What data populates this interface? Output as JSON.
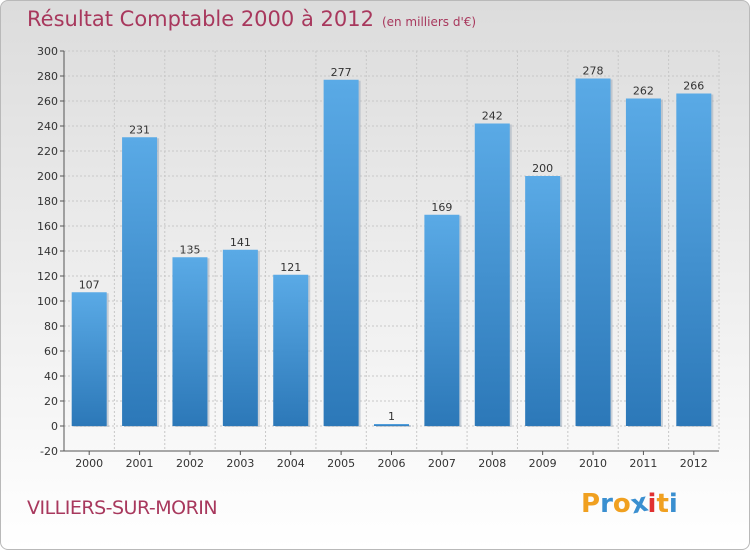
{
  "header": {
    "title": "Résultat Comptable 2000 à 2012",
    "subtitle": "(en milliers d'€)"
  },
  "footer": {
    "commune": "VILLIERS-SUR-MORIN",
    "logo_letters": [
      "P",
      "r",
      "o",
      "x",
      "i",
      "t",
      "i"
    ],
    "logo_colors": [
      "#f0a020",
      "#3a8fd0",
      "#f0a020",
      "#3a8fd0",
      "#e03030",
      "#f0a020",
      "#3a8fd0"
    ]
  },
  "colors": {
    "bar_light": "#5aaae6",
    "bar_dark": "#2c78b8",
    "title": "#a8385d",
    "grid": "#c8c8c8"
  },
  "chart_data": {
    "type": "bar",
    "title": "Résultat Comptable 2000 à 2012",
    "subtitle": "(en milliers d'€)",
    "categories": [
      "2000",
      "2001",
      "2002",
      "2003",
      "2004",
      "2005",
      "2006",
      "2007",
      "2008",
      "2009",
      "2010",
      "2011",
      "2012"
    ],
    "values": [
      107,
      231,
      135,
      141,
      121,
      277,
      1,
      169,
      242,
      200,
      278,
      262,
      266
    ],
    "yticks": [
      -20,
      0,
      20,
      40,
      60,
      80,
      100,
      120,
      140,
      160,
      180,
      200,
      220,
      240,
      260,
      280,
      300
    ],
    "ylim": [
      -20,
      300
    ],
    "grid": true,
    "data_labels": true
  }
}
